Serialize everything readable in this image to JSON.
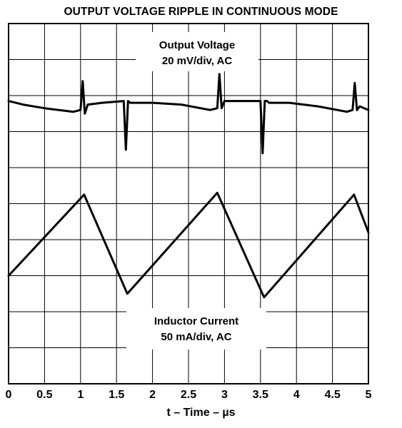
{
  "chart_data": {
    "type": "line",
    "title": "OUTPUT VOLTAGE RIPPLE IN CONTINUOUS MODE",
    "xlabel": "t – Time – µs",
    "ylabel": "",
    "xlim": [
      0,
      5
    ],
    "x_ticks": [
      "0",
      "0.5",
      "1",
      "1.5",
      "2",
      "2.5",
      "3",
      "3.5",
      "4",
      "4.5",
      "5"
    ],
    "y_divisions": 10,
    "grid": true,
    "annotations": [
      {
        "lines": [
          "Output Voltage",
          "20 mV/div, AC"
        ]
      },
      {
        "lines": [
          "Inductor Current",
          "50 mA/div, AC"
        ]
      }
    ],
    "series": [
      {
        "name": "Output Voltage",
        "scale": "20 mV/div, AC",
        "x_us": [
          0,
          0.2,
          0.5,
          0.9,
          1.0,
          1.03,
          1.06,
          1.1,
          1.3,
          1.6,
          1.63,
          1.66,
          1.69,
          1.72,
          2.0,
          2.4,
          2.8,
          2.9,
          2.93,
          2.96,
          3.0,
          3.2,
          3.5,
          3.53,
          3.56,
          3.59,
          3.62,
          3.9,
          4.3,
          4.7,
          4.78,
          4.81,
          4.84,
          4.88,
          5.0
        ],
        "y_div": [
          7.85,
          7.75,
          7.65,
          7.55,
          7.6,
          8.4,
          7.5,
          7.75,
          7.8,
          7.85,
          6.5,
          7.85,
          7.8,
          7.8,
          7.8,
          7.75,
          7.6,
          7.65,
          8.6,
          7.65,
          7.85,
          7.85,
          7.85,
          6.4,
          7.85,
          7.85,
          7.8,
          7.8,
          7.7,
          7.55,
          7.6,
          8.35,
          7.6,
          7.7,
          7.6
        ]
      },
      {
        "name": "Inductor Current",
        "scale": "50 mA/div, AC",
        "x_us": [
          0,
          1.05,
          1.65,
          2.9,
          3.55,
          4.8,
          5.0
        ],
        "y_div": [
          3.0,
          5.25,
          2.5,
          5.3,
          2.4,
          5.25,
          4.2
        ]
      }
    ]
  }
}
